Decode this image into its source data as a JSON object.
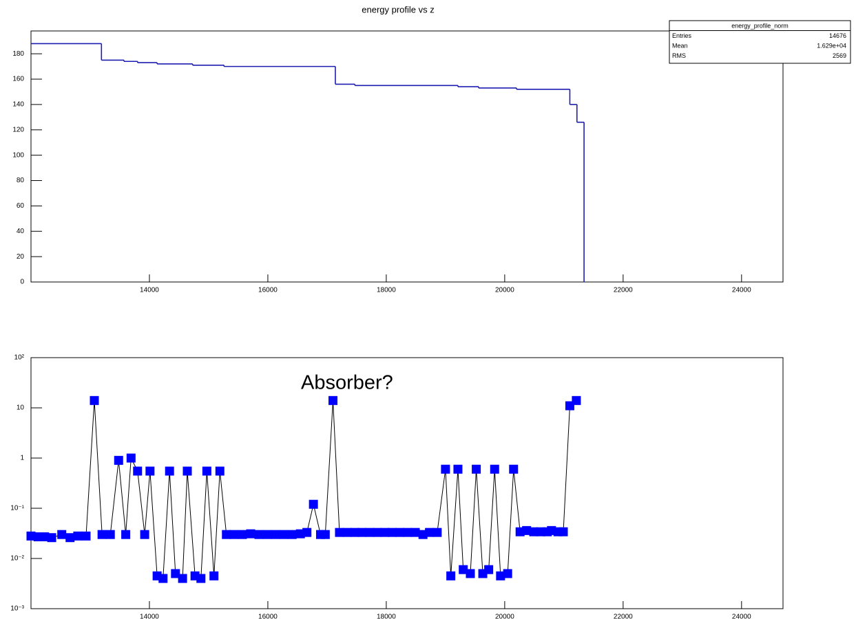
{
  "chart_data": [
    {
      "type": "histogram",
      "title": "energy profile vs z",
      "bins": [
        12000,
        13190,
        13570,
        13800,
        14130,
        14730,
        15260,
        17140,
        17470,
        19210,
        19560,
        20200,
        21100,
        21220,
        21340
      ],
      "values": [
        188,
        175,
        174,
        173,
        172,
        171,
        170,
        156,
        155,
        154,
        153,
        152,
        140,
        126
      ],
      "color": "#1c1cb0",
      "xlim": [
        12000,
        24700
      ],
      "xticks": [
        14000,
        16000,
        18000,
        20000,
        22000,
        24000
      ],
      "ylim": [
        0,
        198
      ],
      "yticks": [
        0,
        20,
        40,
        60,
        80,
        100,
        120,
        140,
        160,
        180
      ],
      "stats": {
        "title": "energy_profile_norm",
        "rows": [
          [
            "Entries",
            "14676"
          ],
          [
            "Mean",
            "1.629e+04"
          ],
          [
            "RMS",
            "2569"
          ]
        ]
      }
    },
    {
      "type": "scatter",
      "annotation": "Absorber?",
      "log_y": true,
      "x": [
        12000,
        12120,
        12230,
        12350,
        12520,
        12660,
        12790,
        12930,
        13070,
        13200,
        13340,
        13480,
        13600,
        13690,
        13800,
        13920,
        14010,
        14130,
        14230,
        14340,
        14440,
        14560,
        14640,
        14770,
        14870,
        14970,
        15090,
        15190,
        15300,
        15430,
        15570,
        15710,
        15850,
        15990,
        16130,
        16270,
        16410,
        16550,
        16660,
        16770,
        16890,
        16970,
        17100,
        17210,
        17340,
        17470,
        17590,
        17720,
        17850,
        17980,
        18100,
        18230,
        18360,
        18490,
        18620,
        18730,
        18860,
        19000,
        19090,
        19210,
        19300,
        19420,
        19520,
        19630,
        19730,
        19830,
        19930,
        20050,
        20150,
        20260,
        20370,
        20490,
        20610,
        20720,
        20790,
        20900,
        20990,
        21100,
        21210
      ],
      "values": [
        0.028,
        0.027,
        0.027,
        0.026,
        0.03,
        0.026,
        0.028,
        0.028,
        14,
        0.03,
        0.03,
        0.9,
        0.03,
        1,
        0.55,
        0.03,
        0.55,
        0.0045,
        0.004,
        0.55,
        0.005,
        0.004,
        0.55,
        0.0045,
        0.004,
        0.55,
        0.0045,
        0.55,
        0.03,
        0.03,
        0.03,
        0.031,
        0.03,
        0.03,
        0.03,
        0.03,
        0.03,
        0.031,
        0.033,
        0.12,
        0.03,
        0.03,
        14,
        0.033,
        0.033,
        0.033,
        0.033,
        0.033,
        0.033,
        0.033,
        0.033,
        0.033,
        0.033,
        0.033,
        0.03,
        0.033,
        0.033,
        0.6,
        0.0045,
        0.6,
        0.006,
        0.005,
        0.6,
        0.005,
        0.006,
        0.6,
        0.0045,
        0.005,
        0.6,
        0.034,
        0.036,
        0.034,
        0.034,
        0.034,
        0.036,
        0.034,
        0.034,
        11,
        14
      ],
      "color": "#0000ff",
      "line_color": "#000000",
      "xlim": [
        12000,
        24700
      ],
      "xticks": [
        14000,
        16000,
        18000,
        20000,
        22000,
        24000
      ],
      "ylim": [
        0.001,
        100
      ],
      "yticks": [
        {
          "value": 0.001,
          "label": "10⁻³"
        },
        {
          "value": 0.01,
          "label": "10⁻²"
        },
        {
          "value": 0.1,
          "label": "10⁻¹"
        },
        1,
        10,
        {
          "value": 100,
          "label": "10²"
        }
      ]
    }
  ]
}
